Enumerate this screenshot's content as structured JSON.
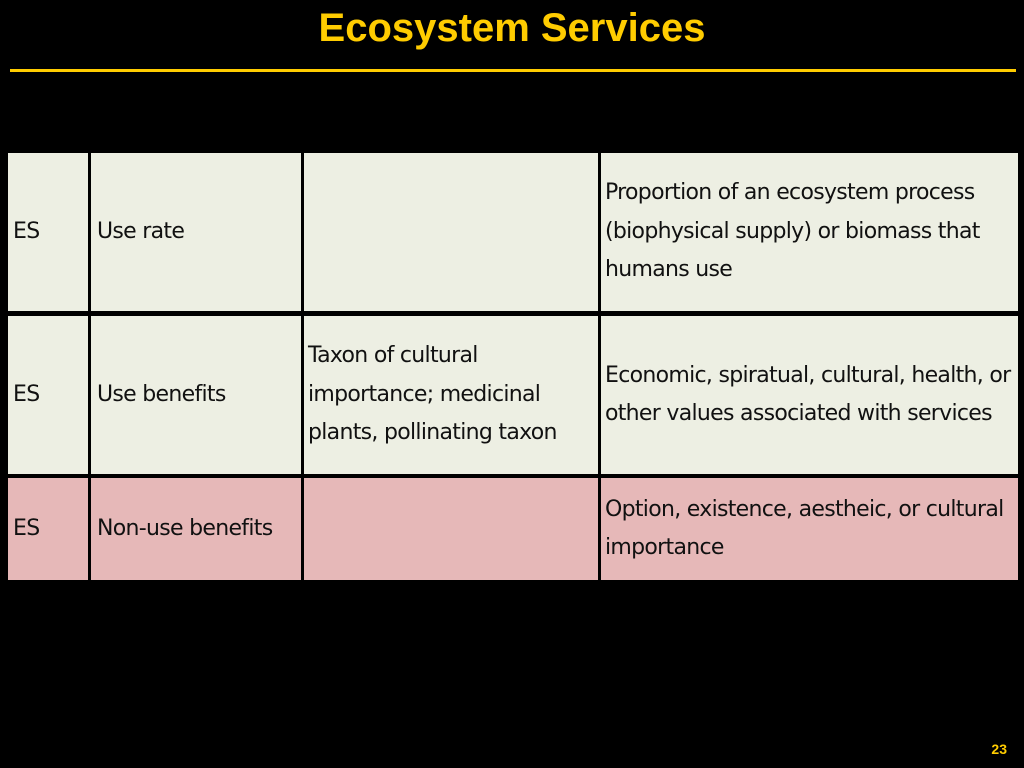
{
  "slide": {
    "title": "Ecosystem Services",
    "page_number": "23"
  },
  "table": {
    "rows": [
      {
        "style": "green",
        "cells": [
          "ES",
          "Use rate",
          "",
          "Proportion of an ecosystem process (biophysical supply) or biomass that humans use"
        ]
      },
      {
        "style": "green",
        "cells": [
          "ES",
          "Use benefits",
          "Taxon of cultural importance; medicinal plants, pollinating taxon",
          "Economic, spiratual, cultural, health, or other values associated with services"
        ]
      },
      {
        "style": "pink",
        "cells": [
          "ES",
          "Non-use benefits",
          "",
          "Option, existence, aestheic, or cultural importance"
        ]
      }
    ]
  },
  "colors": {
    "background": "#000000",
    "title": "#FFCC00",
    "row_green": "#EDEFE3",
    "row_pink": "#E6B8B8"
  }
}
